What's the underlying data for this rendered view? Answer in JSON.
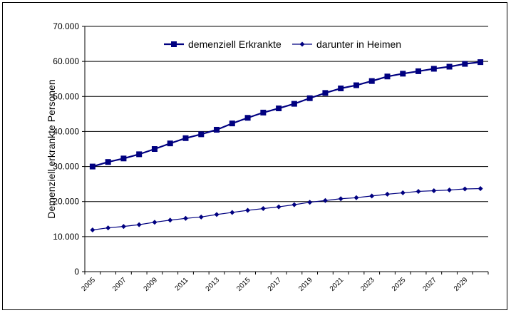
{
  "chart_data": {
    "type": "line",
    "title": "",
    "xlabel": "",
    "ylabel": "Demenziell erkrankte Personen",
    "ylim": [
      0,
      70000
    ],
    "yticks": [
      "0",
      "10.000",
      "20.000",
      "30.000",
      "40.000",
      "50.000",
      "60.000",
      "70.000"
    ],
    "x": [
      2005,
      2006,
      2007,
      2008,
      2009,
      2010,
      2011,
      2012,
      2013,
      2014,
      2015,
      2016,
      2017,
      2018,
      2019,
      2020,
      2021,
      2022,
      2023,
      2024,
      2025,
      2026,
      2027,
      2028,
      2029,
      2030
    ],
    "xtick_labels": [
      "2005",
      "2007",
      "2009",
      "2011",
      "2013",
      "2015",
      "2017",
      "2019",
      "2021",
      "2023",
      "2025",
      "2027",
      "2029"
    ],
    "grid": true,
    "legend_position": "top",
    "series": [
      {
        "name": "demenziell Erkrankte",
        "color": "#000080",
        "marker": "square",
        "values": [
          30000,
          31300,
          32300,
          33500,
          35000,
          36600,
          38100,
          39200,
          40500,
          42300,
          43900,
          45400,
          46600,
          47900,
          49500,
          51000,
          52300,
          53200,
          54400,
          55700,
          56500,
          57200,
          57900,
          58500,
          59300,
          59800
        ]
      },
      {
        "name": "darunter in Heimen",
        "color": "#000080",
        "marker": "diamond",
        "values": [
          11900,
          12500,
          12900,
          13400,
          14100,
          14700,
          15200,
          15600,
          16300,
          16900,
          17500,
          18000,
          18500,
          19100,
          19800,
          20300,
          20800,
          21100,
          21600,
          22100,
          22500,
          22900,
          23100,
          23300,
          23600,
          23700
        ]
      }
    ]
  }
}
